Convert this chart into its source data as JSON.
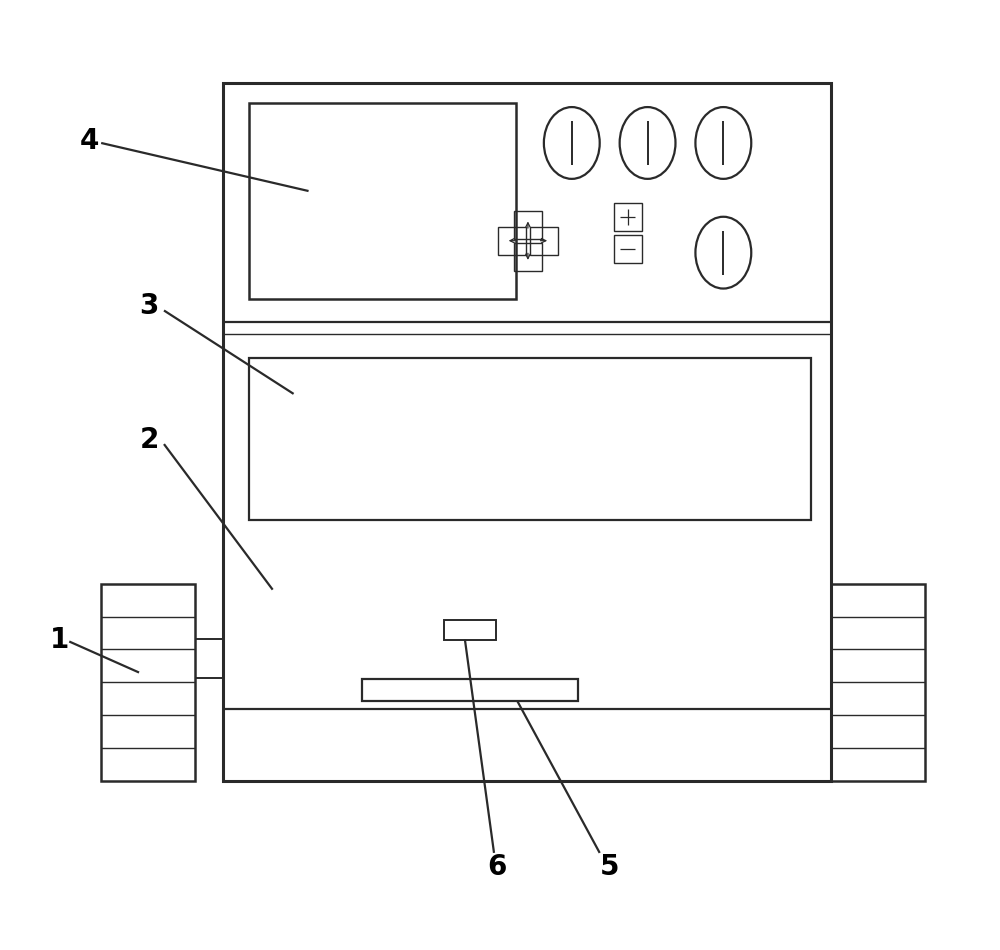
{
  "bg_color": "#ffffff",
  "line_color": "#2a2a2a",
  "lw": 1.6,
  "fig_width": 10.0,
  "fig_height": 9.5
}
